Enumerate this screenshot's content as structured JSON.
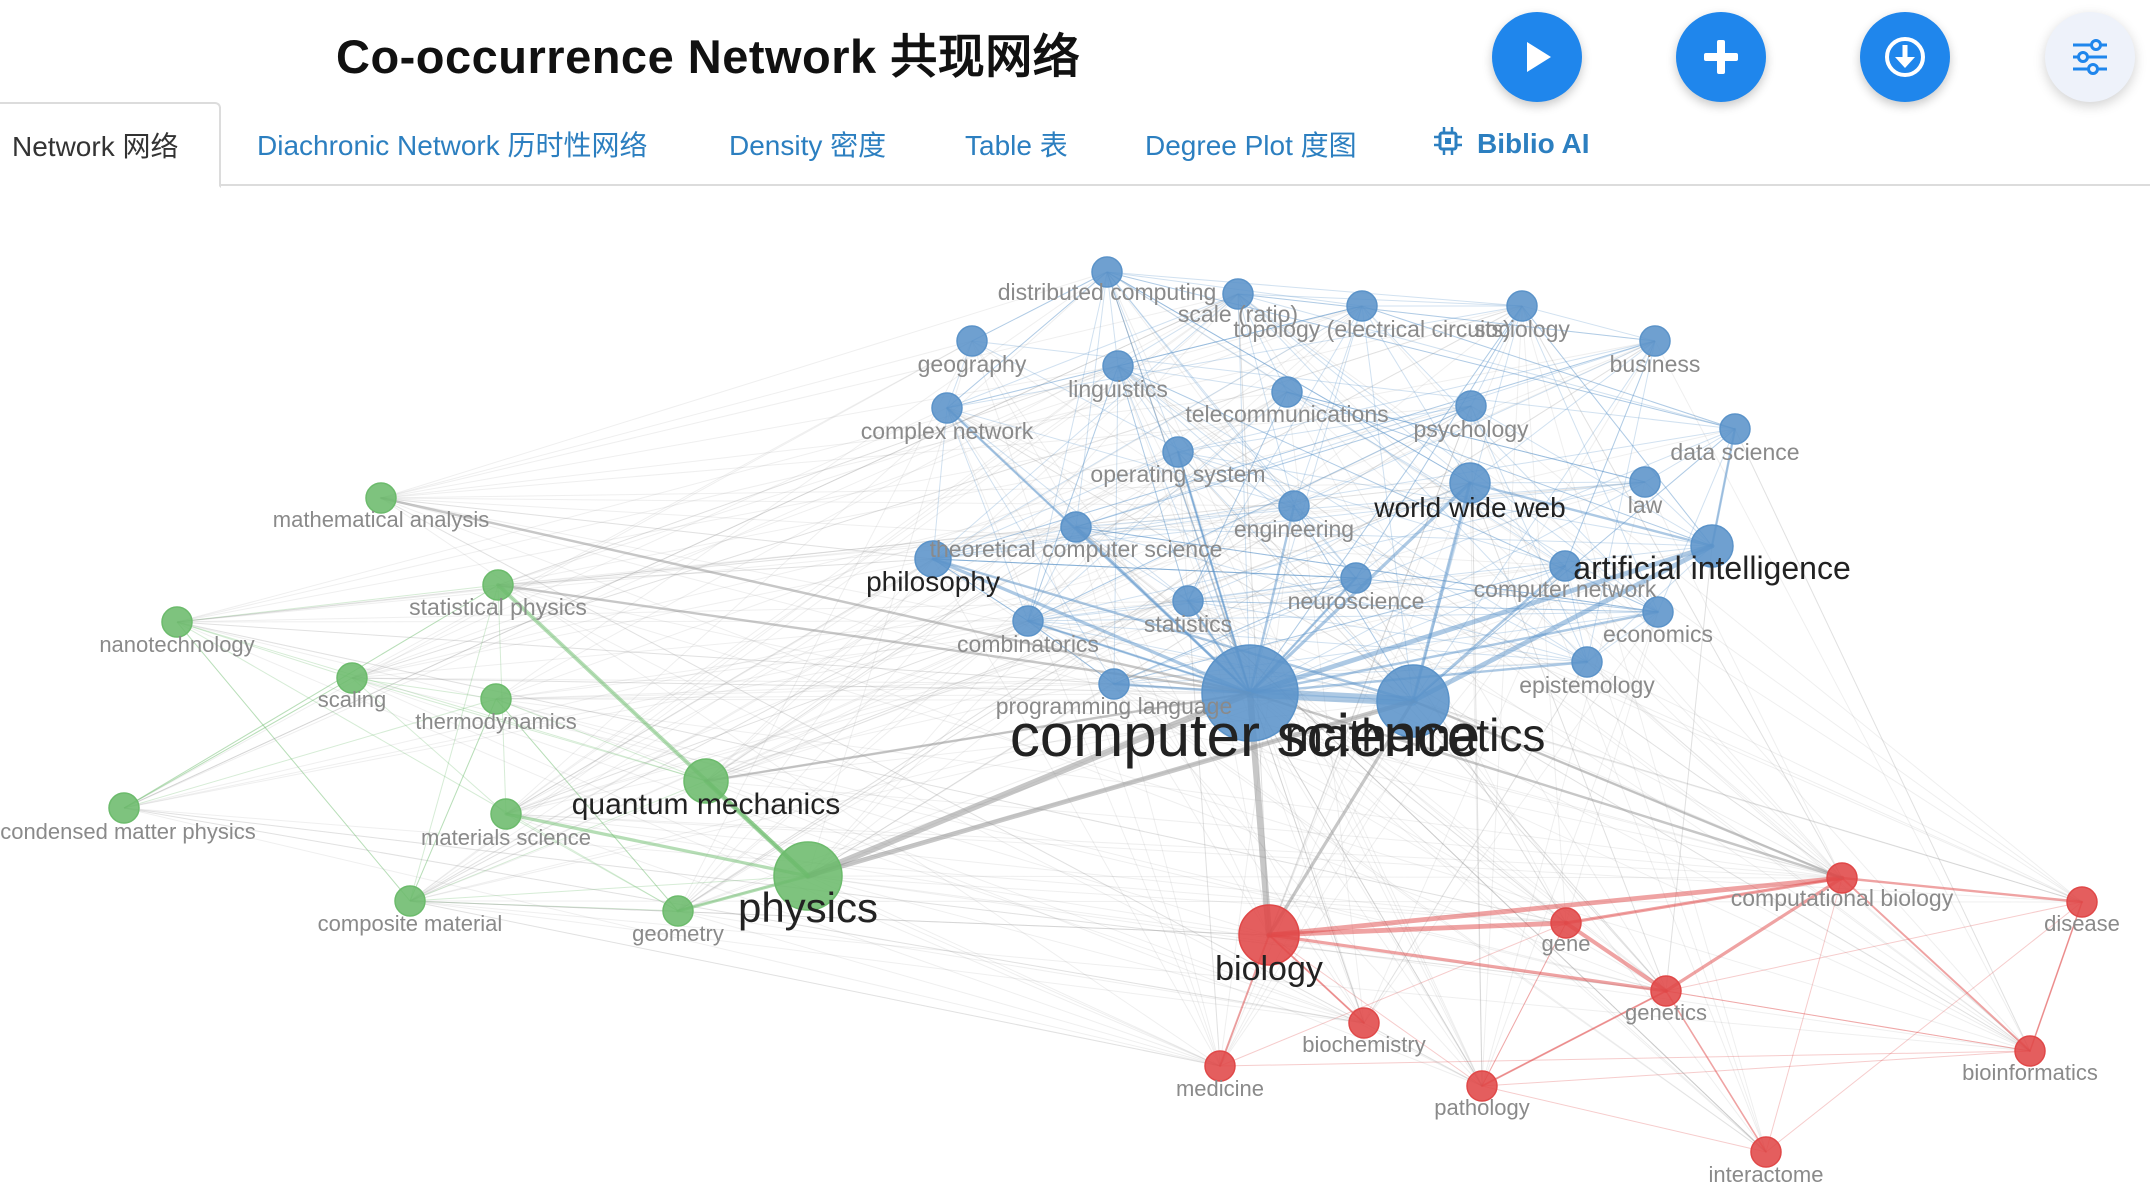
{
  "header": {
    "title": "Co-occurrence Network  共现网络"
  },
  "actions": [
    {
      "name": "play-button",
      "icon": "play-icon",
      "color": "#1f86ec"
    },
    {
      "name": "add-button",
      "icon": "plus-icon",
      "color": "#1f86ec"
    },
    {
      "name": "download-button",
      "icon": "download-icon",
      "color": "#1f86ec"
    },
    {
      "name": "settings-button",
      "icon": "sliders-icon",
      "color": "#eef2fa"
    }
  ],
  "tabs": [
    {
      "label": "Network  网络",
      "active": true
    },
    {
      "label": "Diachronic Network  历时性网络"
    },
    {
      "label": "Density  密度"
    },
    {
      "label": "Table  表"
    },
    {
      "label": "Degree Plot  度图"
    },
    {
      "label": "Biblio AI",
      "icon": "chip-icon"
    }
  ],
  "network": {
    "clusters": {
      "blue": "#5b93c9",
      "green": "#6cbb6c",
      "red": "#e04848"
    },
    "nodes": [
      {
        "id": "computer science",
        "cluster": "blue",
        "weight": 10
      },
      {
        "id": "mathematics",
        "cluster": "blue",
        "weight": 7
      },
      {
        "id": "artificial intelligence",
        "cluster": "blue",
        "weight": 4.5
      },
      {
        "id": "world wide web",
        "cluster": "blue",
        "weight": 3.5
      },
      {
        "id": "philosophy",
        "cluster": "blue",
        "weight": 3
      },
      {
        "id": "distributed computing",
        "cluster": "blue",
        "weight": 2
      },
      {
        "id": "scale (ratio)",
        "cluster": "blue",
        "weight": 2
      },
      {
        "id": "topology (electrical circuits)",
        "cluster": "blue",
        "weight": 2
      },
      {
        "id": "sociology",
        "cluster": "blue",
        "weight": 2
      },
      {
        "id": "geography",
        "cluster": "blue",
        "weight": 2
      },
      {
        "id": "business",
        "cluster": "blue",
        "weight": 2
      },
      {
        "id": "linguistics",
        "cluster": "blue",
        "weight": 2
      },
      {
        "id": "telecommunications",
        "cluster": "blue",
        "weight": 2
      },
      {
        "id": "psychology",
        "cluster": "blue",
        "weight": 2
      },
      {
        "id": "complex network",
        "cluster": "blue",
        "weight": 2
      },
      {
        "id": "data science",
        "cluster": "blue",
        "weight": 2
      },
      {
        "id": "operating system",
        "cluster": "blue",
        "weight": 2
      },
      {
        "id": "law",
        "cluster": "blue",
        "weight": 2
      },
      {
        "id": "engineering",
        "cluster": "blue",
        "weight": 2
      },
      {
        "id": "theoretical computer science",
        "cluster": "blue",
        "weight": 2
      },
      {
        "id": "computer network",
        "cluster": "blue",
        "weight": 2
      },
      {
        "id": "neuroscience",
        "cluster": "blue",
        "weight": 2
      },
      {
        "id": "statistics",
        "cluster": "blue",
        "weight": 2
      },
      {
        "id": "combinatorics",
        "cluster": "blue",
        "weight": 2
      },
      {
        "id": "economics",
        "cluster": "blue",
        "weight": 2
      },
      {
        "id": "epistemology",
        "cluster": "blue",
        "weight": 2
      },
      {
        "id": "programming language",
        "cluster": "blue",
        "weight": 2
      },
      {
        "id": "physics",
        "cluster": "green",
        "weight": 5
      },
      {
        "id": "quantum mechanics",
        "cluster": "green",
        "weight": 3
      },
      {
        "id": "mathematical analysis",
        "cluster": "green",
        "weight": 2
      },
      {
        "id": "statistical physics",
        "cluster": "green",
        "weight": 2
      },
      {
        "id": "nanotechnology",
        "cluster": "green",
        "weight": 2
      },
      {
        "id": "scaling",
        "cluster": "green",
        "weight": 2
      },
      {
        "id": "thermodynamics",
        "cluster": "green",
        "weight": 2
      },
      {
        "id": "condensed matter physics",
        "cluster": "green",
        "weight": 2
      },
      {
        "id": "materials science",
        "cluster": "green",
        "weight": 2
      },
      {
        "id": "composite material",
        "cluster": "green",
        "weight": 2
      },
      {
        "id": "geometry",
        "cluster": "green",
        "weight": 2
      },
      {
        "id": "biology",
        "cluster": "red",
        "weight": 4
      },
      {
        "id": "computational biology",
        "cluster": "red",
        "weight": 2
      },
      {
        "id": "disease",
        "cluster": "red",
        "weight": 2
      },
      {
        "id": "gene",
        "cluster": "red",
        "weight": 2
      },
      {
        "id": "genetics",
        "cluster": "red",
        "weight": 2
      },
      {
        "id": "biochemistry",
        "cluster": "red",
        "weight": 2
      },
      {
        "id": "medicine",
        "cluster": "red",
        "weight": 2
      },
      {
        "id": "bioinformatics",
        "cluster": "red",
        "weight": 2
      },
      {
        "id": "pathology",
        "cluster": "red",
        "weight": 2
      },
      {
        "id": "interactome",
        "cluster": "red",
        "weight": 2
      }
    ],
    "edges": [
      [
        "computer science",
        "mathematics",
        6
      ],
      [
        "computer science",
        "physics",
        4
      ],
      [
        "computer science",
        "biology",
        4
      ],
      [
        "computer science",
        "artificial intelligence",
        3
      ],
      [
        "mathematics",
        "artificial intelligence",
        3
      ],
      [
        "computer science",
        "world wide web",
        2
      ],
      [
        "computer science",
        "philosophy",
        2
      ],
      [
        "mathematics",
        "physics",
        3
      ],
      [
        "physics",
        "quantum mechanics",
        3
      ],
      [
        "physics",
        "statistical physics",
        2.5
      ],
      [
        "physics",
        "materials science",
        2
      ],
      [
        "physics",
        "geometry",
        2
      ],
      [
        "biology",
        "gene",
        3
      ],
      [
        "biology",
        "computational biology",
        3
      ],
      [
        "gene",
        "genetics",
        2.5
      ],
      [
        "biology",
        "genetics",
        2
      ],
      [
        "computational biology",
        "genetics",
        2
      ],
      [
        "computational biology",
        "gene",
        2
      ],
      [
        "computational biology",
        "disease",
        1.5
      ],
      [
        "computer science",
        "complex network",
        1.5
      ],
      [
        "computer science",
        "theoretical computer science",
        1.5
      ],
      [
        "computer science",
        "statistics",
        1.5
      ],
      [
        "computer science",
        "combinatorics",
        1.5
      ],
      [
        "computer science",
        "programming language",
        1.5
      ],
      [
        "computer science",
        "neuroscience",
        1.5
      ],
      [
        "computer science",
        "engineering",
        1.5
      ],
      [
        "computer science",
        "operating system",
        1.5
      ],
      [
        "computer science",
        "economics",
        1.5
      ],
      [
        "computer science",
        "epistemology",
        1.5
      ],
      [
        "mathematics",
        "world wide web",
        2
      ],
      [
        "mathematics",
        "computer network",
        1.5
      ],
      [
        "artificial intelligence",
        "data science",
        1.5
      ],
      [
        "artificial intelligence",
        "world wide web",
        1.5
      ],
      [
        "philosophy",
        "mathematics",
        1.5
      ],
      [
        "biology",
        "mathematics",
        2
      ],
      [
        "mathematical analysis",
        "computer science",
        1.5
      ],
      [
        "statistical physics",
        "computer science",
        1.5
      ],
      [
        "quantum mechanics",
        "computer science",
        1.5
      ],
      [
        "biology",
        "medicine",
        1.2
      ],
      [
        "biology",
        "biochemistry",
        1.2
      ],
      [
        "genetics",
        "pathology",
        1.2
      ],
      [
        "computational biology",
        "bioinformatics",
        1.2
      ],
      [
        "genetics",
        "interactome",
        1
      ],
      [
        "disease",
        "bioinformatics",
        1
      ],
      [
        "computational biology",
        "mathematics",
        1.5
      ],
      [
        "computational biology",
        "computer science",
        1.5
      ]
    ]
  }
}
